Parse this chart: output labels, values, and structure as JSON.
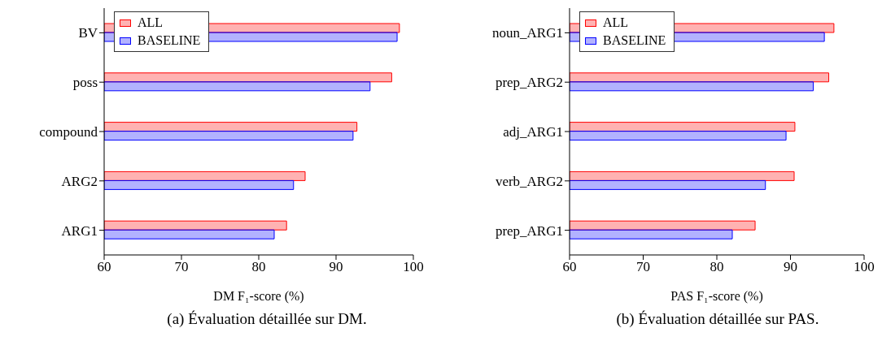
{
  "chart_data": [
    {
      "type": "bar",
      "orientation": "horizontal",
      "categories": [
        "BV",
        "poss",
        "compound",
        "ARG2",
        "ARG1"
      ],
      "xlabel": "DM F₁-score (%)",
      "xlim": [
        60,
        100
      ],
      "xticks": [
        60,
        70,
        80,
        90,
        100
      ],
      "legend": "top left",
      "grid": false,
      "series": [
        {
          "name": "ALL",
          "color": "#ff0000",
          "values": [
            98.2,
            97.2,
            92.7,
            86.0,
            83.6
          ]
        },
        {
          "name": "BASELINE",
          "color": "#0000ff",
          "values": [
            97.9,
            94.4,
            92.2,
            84.5,
            82.0
          ]
        }
      ],
      "annotations": [
        "(a) Évaluation détaillée sur DM."
      ]
    },
    {
      "type": "bar",
      "orientation": "horizontal",
      "categories": [
        "noun_ARG1",
        "prep_ARG2",
        "adj_ARG1",
        "verb_ARG2",
        "prep_ARG1"
      ],
      "xlabel": "PAS F₁-score (%)",
      "xlim": [
        60,
        100
      ],
      "xticks": [
        60,
        70,
        80,
        90,
        100
      ],
      "legend": "top left",
      "grid": false,
      "series": [
        {
          "name": "ALL",
          "color": "#ff0000",
          "values": [
            95.9,
            95.2,
            90.6,
            90.5,
            85.2
          ]
        },
        {
          "name": "BASELINE",
          "color": "#0000ff",
          "values": [
            94.6,
            93.1,
            89.4,
            86.6,
            82.1
          ]
        }
      ],
      "annotations": [
        "(b) Évaluation détaillée sur PAS."
      ]
    }
  ]
}
